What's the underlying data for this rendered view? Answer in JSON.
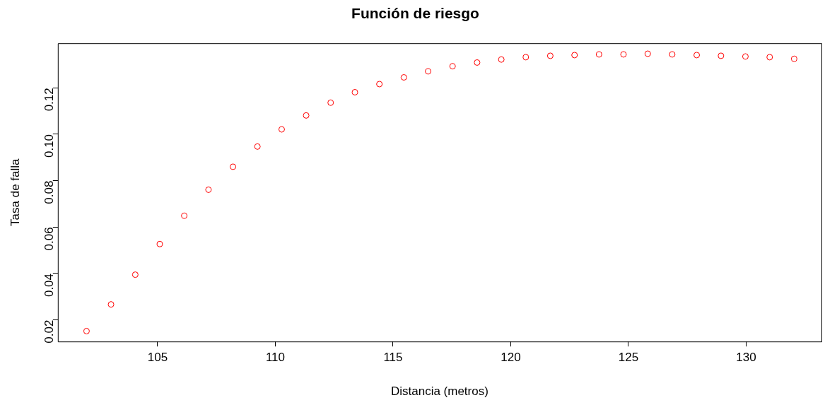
{
  "chart_data": {
    "type": "scatter",
    "title": "Función de riesgo",
    "xlabel": "Distancia (metros)",
    "ylabel": "Tasa de falla",
    "x": [
      101.98,
      103.02,
      104.05,
      105.09,
      106.13,
      107.16,
      108.2,
      109.24,
      110.27,
      111.31,
      112.35,
      113.38,
      114.42,
      115.46,
      116.49,
      117.53,
      118.57,
      119.6,
      120.64,
      121.68,
      122.71,
      123.75,
      124.79,
      125.82,
      126.86,
      127.9,
      128.93,
      129.97,
      131.0,
      132.04
    ],
    "series": [
      {
        "color": "#ff0000",
        "values": [
          0.0152,
          0.0267,
          0.0395,
          0.0527,
          0.0649,
          0.0761,
          0.086,
          0.0947,
          0.1021,
          0.1081,
          0.1136,
          0.1181,
          0.1216,
          0.1245,
          0.1271,
          0.1293,
          0.1309,
          0.1322,
          0.1332,
          0.1338,
          0.1341,
          0.1344,
          0.1344,
          0.1347,
          0.1344,
          0.1341,
          0.1338,
          0.1335,
          0.1332,
          0.1325
        ]
      }
    ],
    "xlim": [
      100.76,
      133.2
    ],
    "xticks": [
      105,
      110,
      115,
      120,
      125,
      130
    ],
    "ylim": [
      0.0107,
      0.1392
    ],
    "yticks": [
      0.02,
      0.04,
      0.06,
      0.08,
      {
        "value": 0.1,
        "label": "0.10"
      },
      0.12
    ],
    "grid": false,
    "legend": false,
    "marker": "circle"
  }
}
